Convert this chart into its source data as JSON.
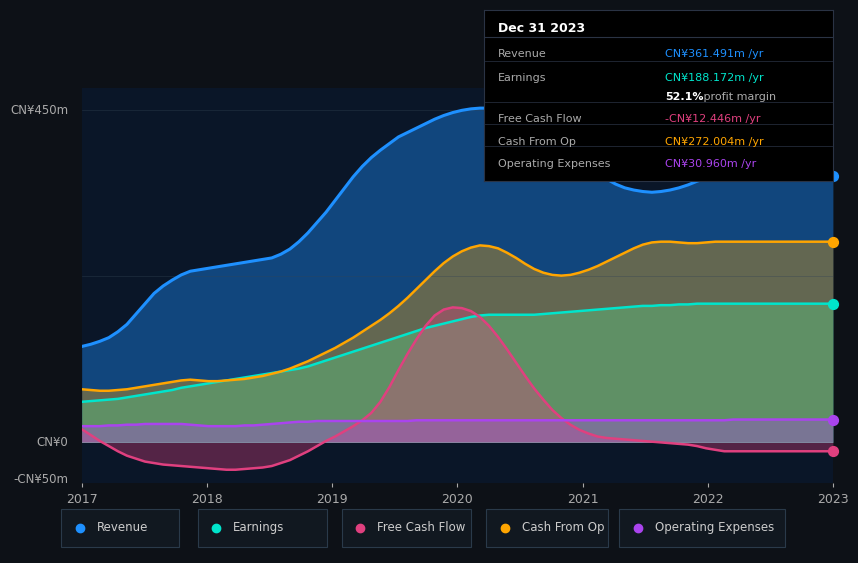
{
  "background_color": "#0d1117",
  "chart_bg": "#0a1628",
  "colors": {
    "revenue": "#1e90ff",
    "earnings": "#00e5cc",
    "free_cash_flow": "#e0407f",
    "cash_from_op": "#ffa500",
    "operating_expenses": "#aa44ee"
  },
  "info_box": {
    "date": "Dec 31 2023",
    "revenue_label": "Revenue",
    "revenue_value": "CN¥361.491m /yr",
    "earnings_label": "Earnings",
    "earnings_value": "CN¥188.172m /yr",
    "profit_margin": "52.1% profit margin",
    "fcf_label": "Free Cash Flow",
    "fcf_value": "-CN¥12.446m /yr",
    "cfop_label": "Cash From Op",
    "cfop_value": "CN¥272.004m /yr",
    "opex_label": "Operating Expenses",
    "opex_value": "CN¥30.960m /yr"
  },
  "legend": [
    {
      "label": "Revenue",
      "color": "#1e90ff"
    },
    {
      "label": "Earnings",
      "color": "#00e5cc"
    },
    {
      "label": "Free Cash Flow",
      "color": "#e0407f"
    },
    {
      "label": "Cash From Op",
      "color": "#ffa500"
    },
    {
      "label": "Operating Expenses",
      "color": "#aa44ee"
    }
  ],
  "ylabel_top": "CN¥450m",
  "ylabel_zero": "CN¥0",
  "ylabel_neg": "-CN¥50m",
  "x_labels": [
    "2017",
    "2018",
    "2019",
    "2020",
    "2021",
    "2022",
    "2023"
  ],
  "y_range": [
    -55,
    480
  ],
  "revenue": [
    130,
    133,
    137,
    142,
    150,
    160,
    174,
    188,
    202,
    212,
    220,
    227,
    232,
    234,
    236,
    238,
    240,
    242,
    244,
    246,
    248,
    250,
    255,
    262,
    272,
    284,
    298,
    312,
    328,
    344,
    360,
    374,
    386,
    396,
    405,
    414,
    420,
    426,
    432,
    438,
    443,
    447,
    450,
    452,
    453,
    453,
    452,
    450,
    447,
    443,
    438,
    432,
    424,
    415,
    405,
    393,
    380,
    367,
    357,
    350,
    345,
    342,
    340,
    339,
    340,
    342,
    345,
    349,
    354,
    358,
    358,
    357,
    358,
    361,
    362,
    361,
    361,
    361,
    361,
    361,
    361,
    361,
    361,
    361
  ],
  "earnings": [
    55,
    56,
    57,
    58,
    59,
    61,
    63,
    65,
    67,
    69,
    71,
    74,
    76,
    78,
    80,
    82,
    84,
    86,
    88,
    90,
    92,
    94,
    96,
    98,
    100,
    103,
    107,
    111,
    115,
    119,
    123,
    127,
    131,
    135,
    139,
    143,
    147,
    151,
    155,
    158,
    161,
    164,
    167,
    170,
    172,
    173,
    173,
    173,
    173,
    173,
    173,
    174,
    175,
    176,
    177,
    178,
    179,
    180,
    181,
    182,
    183,
    184,
    185,
    185,
    186,
    186,
    187,
    187,
    188,
    188,
    188,
    188,
    188,
    188,
    188,
    188,
    188,
    188,
    188,
    188,
    188,
    188,
    188,
    188
  ],
  "free_cash_flow": [
    18,
    10,
    2,
    -5,
    -12,
    -18,
    -22,
    -26,
    -28,
    -30,
    -31,
    -32,
    -33,
    -34,
    -35,
    -36,
    -37,
    -37,
    -36,
    -35,
    -34,
    -32,
    -28,
    -24,
    -18,
    -12,
    -5,
    2,
    8,
    15,
    22,
    30,
    40,
    55,
    75,
    98,
    120,
    140,
    158,
    172,
    180,
    183,
    182,
    178,
    170,
    158,
    143,
    126,
    108,
    90,
    73,
    58,
    44,
    33,
    24,
    17,
    12,
    8,
    6,
    5,
    4,
    3,
    2,
    1,
    0,
    -1,
    -2,
    -3,
    -5,
    -8,
    -10,
    -12,
    -12,
    -12,
    -12,
    -12,
    -12,
    -12,
    -12,
    -12,
    -12,
    -12,
    -12,
    -12
  ],
  "cash_from_op": [
    72,
    71,
    70,
    70,
    71,
    72,
    74,
    76,
    78,
    80,
    82,
    84,
    85,
    84,
    83,
    83,
    84,
    85,
    86,
    88,
    90,
    93,
    96,
    100,
    105,
    110,
    116,
    122,
    128,
    135,
    142,
    150,
    158,
    166,
    175,
    185,
    196,
    208,
    220,
    232,
    243,
    252,
    259,
    264,
    267,
    266,
    263,
    257,
    250,
    242,
    235,
    230,
    227,
    226,
    227,
    230,
    234,
    239,
    245,
    251,
    257,
    263,
    268,
    271,
    272,
    272,
    271,
    270,
    270,
    271,
    272,
    272,
    272,
    272,
    272,
    272,
    272,
    272,
    272,
    272,
    272,
    272,
    272,
    272
  ],
  "operating_expenses": [
    22,
    22,
    22,
    23,
    23,
    24,
    24,
    25,
    25,
    25,
    25,
    25,
    24,
    23,
    22,
    22,
    22,
    22,
    23,
    23,
    24,
    25,
    26,
    27,
    28,
    28,
    29,
    29,
    29,
    29,
    29,
    29,
    29,
    29,
    29,
    29,
    29,
    30,
    30,
    30,
    30,
    30,
    30,
    30,
    30,
    30,
    30,
    30,
    30,
    30,
    30,
    30,
    30,
    30,
    30,
    30,
    30,
    30,
    30,
    30,
    30,
    30,
    30,
    30,
    30,
    30,
    30,
    30,
    30,
    30,
    30,
    30,
    31,
    31,
    31,
    31,
    31,
    31,
    31,
    31,
    31,
    31,
    31,
    31
  ]
}
